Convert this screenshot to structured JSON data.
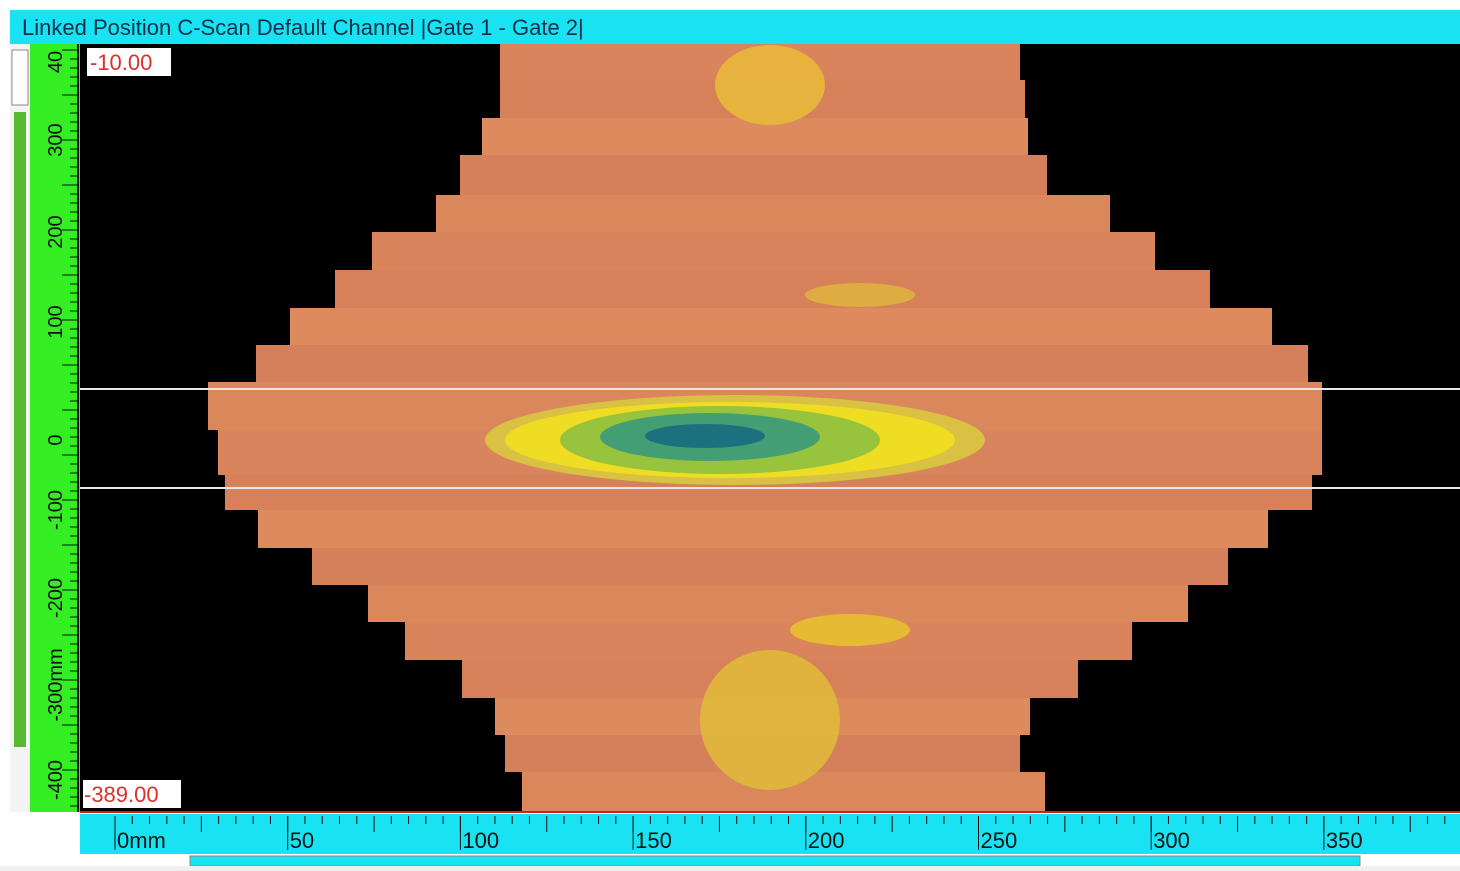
{
  "title": "Linked Position C-Scan Default Channel |Gate 1 - Gate 2|",
  "scan_limits": {
    "top": "-10.00",
    "bottom": "-389.00"
  },
  "vertical_ruler": {
    "labels": [
      "40",
      "300",
      "200",
      "100",
      "0",
      "-100",
      "-200",
      "-300mm",
      "-400"
    ]
  },
  "horizontal_ruler": {
    "labels": [
      "0mm",
      "50",
      "100",
      "150",
      "200",
      "250",
      "300",
      "350"
    ]
  }
}
